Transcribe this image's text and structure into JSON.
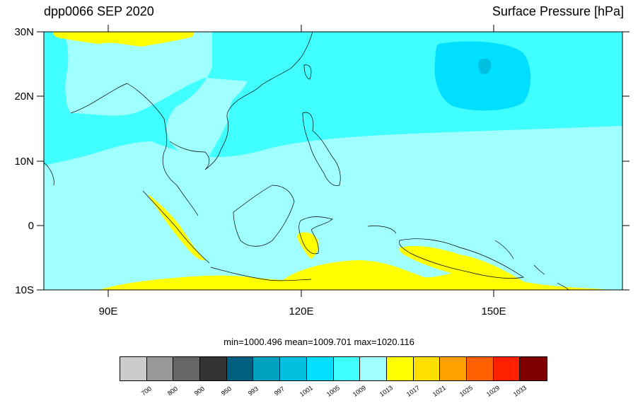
{
  "header": {
    "left_title": "dpp0066 SEP 2020",
    "right_title": "Surface Pressure [hPa]"
  },
  "axes": {
    "y_labels": [
      "30N",
      "20N",
      "10N",
      "0",
      "10S"
    ],
    "x_labels": [
      "90E",
      "120E",
      "150E"
    ]
  },
  "stats": {
    "text": "min=1000.496  mean=1009.701  max=1020.116"
  },
  "colorbar": {
    "colors": [
      "#cccccc",
      "#999999",
      "#666666",
      "#333333",
      "#005f7f",
      "#00a0bf",
      "#00bfdf",
      "#00dfff",
      "#40ffff",
      "#a0ffff",
      "#ffff00",
      "#ffdf00",
      "#ffa000",
      "#ff6000",
      "#ff2000",
      "#800000"
    ],
    "labels": [
      "700",
      "800",
      "900",
      "950",
      "993",
      "997",
      "1001",
      "1005",
      "1009",
      "1013",
      "1017",
      "1021",
      "1025",
      "1029",
      "1033"
    ]
  },
  "map": {
    "land_color": "#a0ffff",
    "ocean_high_color": "#a0ffff",
    "low_pressure_color": "#40ffff",
    "lower_pressure_color": "#00dfff",
    "lowest_pressure_color": "#00bfdf",
    "high_pressure_color": "#ffff00"
  }
}
